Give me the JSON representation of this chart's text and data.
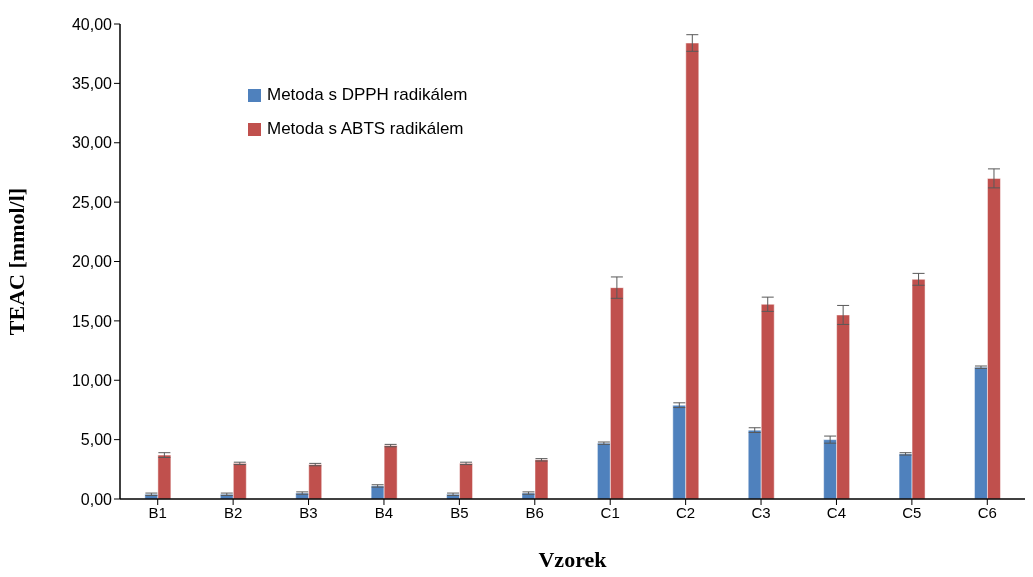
{
  "chart_data": {
    "type": "bar",
    "xlabel": "Vzorek",
    "ylabel": "TEAC [mmol/l]",
    "categories": [
      "B1",
      "B2",
      "B3",
      "B4",
      "B5",
      "B6",
      "C1",
      "C2",
      "C3",
      "C4",
      "C5",
      "C6"
    ],
    "series": [
      {
        "name": "Metoda s DPPH radikálem",
        "color": "#4f81bd",
        "values": [
          0.4,
          0.4,
          0.5,
          1.1,
          0.4,
          0.5,
          4.7,
          7.9,
          5.8,
          5.0,
          3.8,
          11.1
        ],
        "errors": [
          0.1,
          0.1,
          0.1,
          0.1,
          0.1,
          0.1,
          0.1,
          0.2,
          0.2,
          0.3,
          0.1,
          0.1
        ]
      },
      {
        "name": "Metoda s ABTS radikálem",
        "color": "#c0504d",
        "values": [
          3.7,
          3.0,
          2.9,
          4.5,
          3.0,
          3.3,
          17.8,
          38.4,
          16.4,
          15.5,
          18.5,
          27.0
        ],
        "errors": [
          0.2,
          0.1,
          0.1,
          0.1,
          0.1,
          0.1,
          0.9,
          0.7,
          0.6,
          0.8,
          0.5,
          0.8
        ]
      }
    ],
    "ylim": [
      0,
      40
    ],
    "yticks": [
      {
        "value": 0,
        "label": "0,00"
      },
      {
        "value": 5,
        "label": "5,00"
      },
      {
        "value": 10,
        "label": "10,00"
      },
      {
        "value": 15,
        "label": "15,00"
      },
      {
        "value": 20,
        "label": "20,00"
      },
      {
        "value": 25,
        "label": "25,00"
      },
      {
        "value": 30,
        "label": "30,00"
      },
      {
        "value": 35,
        "label": "35,00"
      },
      {
        "value": 40,
        "label": "40,00"
      }
    ],
    "grid": false,
    "legend": "top left"
  }
}
